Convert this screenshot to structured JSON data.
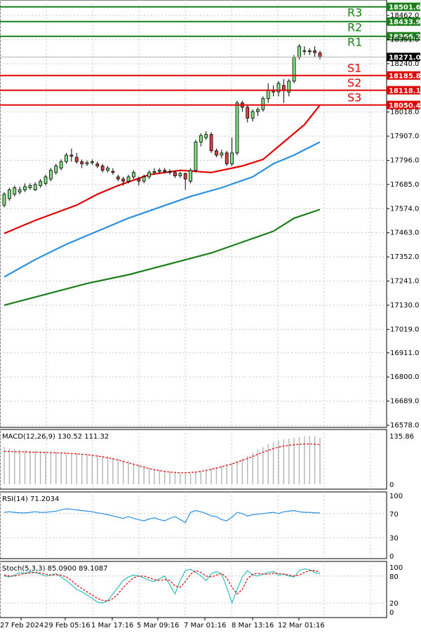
{
  "chart_data": {
    "type": "candlestick",
    "price_ticks": [
      "18462.0",
      "18351.0",
      "18240.0",
      "18018.0",
      "17907.0",
      "17796.0",
      "17685.0",
      "17574.0",
      "17463.0",
      "17352.0",
      "17241.0",
      "17130.0",
      "17019.0",
      "16911.0",
      "16800.0",
      "16689.0",
      "16578.0"
    ],
    "levels": [
      {
        "label": "R3",
        "value": 18501.6,
        "price_text": "18501.6",
        "color": "#1a7f1a"
      },
      {
        "label": "R2",
        "value": 18433.9,
        "price_text": "18433.9",
        "color": "#1a7f1a"
      },
      {
        "label": "R1",
        "value": 18366.2,
        "price_text": "18366.2",
        "color": "#1a7f1a"
      },
      {
        "label": "S1",
        "value": 18185.8,
        "price_text": "18185.8",
        "color": "#e00000"
      },
      {
        "label": "S2",
        "value": 18118.1,
        "price_text": "18118.1",
        "color": "#e00000"
      },
      {
        "label": "S3",
        "value": 18050.4,
        "price_text": "18050.4",
        "color": "#e00000"
      }
    ],
    "current_price": 18271.0,
    "current_price_text": "18271.0",
    "candles": [
      [
        17590,
        17640,
        17580,
        17650
      ],
      [
        17620,
        17660,
        17610,
        17670
      ],
      [
        17640,
        17670,
        17630,
        17680
      ],
      [
        17650,
        17660,
        17640,
        17675
      ],
      [
        17660,
        17675,
        17650,
        17690
      ],
      [
        17670,
        17680,
        17660,
        17690
      ],
      [
        17660,
        17685,
        17655,
        17695
      ],
      [
        17680,
        17700,
        17670,
        17710
      ],
      [
        17690,
        17720,
        17680,
        17730
      ],
      [
        17710,
        17750,
        17700,
        17760
      ],
      [
        17740,
        17770,
        17730,
        17780
      ],
      [
        17760,
        17790,
        17750,
        17800
      ],
      [
        17790,
        17820,
        17780,
        17830
      ],
      [
        17820,
        17815,
        17790,
        17850
      ],
      [
        17810,
        17790,
        17780,
        17830
      ],
      [
        17790,
        17780,
        17760,
        17800
      ],
      [
        17780,
        17785,
        17770,
        17795
      ],
      [
        17785,
        17790,
        17775,
        17800
      ],
      [
        17780,
        17770,
        17760,
        17790
      ],
      [
        17770,
        17750,
        17740,
        17780
      ],
      [
        17750,
        17760,
        17740,
        17770
      ],
      [
        17745,
        17740,
        17730,
        17760
      ],
      [
        17720,
        17710,
        17700,
        17730
      ],
      [
        17710,
        17700,
        17680,
        17720
      ],
      [
        17700,
        17720,
        17690,
        17730
      ],
      [
        17720,
        17740,
        17710,
        17750
      ],
      [
        17710,
        17700,
        17680,
        17720
      ],
      [
        17700,
        17720,
        17690,
        17730
      ],
      [
        17720,
        17740,
        17710,
        17750
      ],
      [
        17740,
        17745,
        17730,
        17760
      ],
      [
        17745,
        17750,
        17735,
        17760
      ],
      [
        17750,
        17745,
        17735,
        17760
      ],
      [
        17745,
        17740,
        17730,
        17755
      ],
      [
        17740,
        17725,
        17715,
        17750
      ],
      [
        17725,
        17735,
        17715,
        17745
      ],
      [
        17735,
        17710,
        17660,
        17740
      ],
      [
        17700,
        17750,
        17690,
        17760
      ],
      [
        17750,
        17880,
        17740,
        17890
      ],
      [
        17880,
        17910,
        17860,
        17920
      ],
      [
        17900,
        17915,
        17890,
        17930
      ],
      [
        17915,
        17840,
        17830,
        17925
      ],
      [
        17840,
        17820,
        17810,
        17850
      ],
      [
        17820,
        17830,
        17805,
        17845
      ],
      [
        17830,
        17780,
        17770,
        17840
      ],
      [
        17780,
        17830,
        17770,
        17900
      ],
      [
        17830,
        18060,
        17820,
        18070
      ],
      [
        18060,
        18040,
        18020,
        18070
      ],
      [
        18040,
        17990,
        17970,
        18050
      ],
      [
        17990,
        18020,
        17975,
        18030
      ],
      [
        18020,
        18030,
        18000,
        18040
      ],
      [
        18030,
        18080,
        18020,
        18090
      ],
      [
        18080,
        18120,
        18060,
        18150
      ],
      [
        18120,
        18110,
        18090,
        18140
      ],
      [
        18110,
        18150,
        18090,
        18160
      ],
      [
        18140,
        18120,
        18060,
        18170
      ],
      [
        18110,
        18160,
        18090,
        18170
      ],
      [
        18160,
        18270,
        18150,
        18280
      ],
      [
        18270,
        18320,
        18260,
        18330
      ],
      [
        18300,
        18300,
        18280,
        18320
      ],
      [
        18295,
        18300,
        18280,
        18310
      ],
      [
        18300,
        18291,
        18270,
        18320
      ],
      [
        18290,
        18271,
        18260,
        18300
      ]
    ],
    "moving_averages": [
      {
        "color": "#e00000",
        "points": [
          [
            0,
            17460
          ],
          [
            6,
            17520
          ],
          [
            14,
            17590
          ],
          [
            18,
            17640
          ],
          [
            22,
            17680
          ],
          [
            28,
            17730
          ],
          [
            34,
            17750
          ],
          [
            40,
            17740
          ],
          [
            46,
            17770
          ],
          [
            50,
            17800
          ],
          [
            54,
            17880
          ],
          [
            58,
            17960
          ],
          [
            61,
            18050
          ]
        ]
      },
      {
        "color": "#2b8fe0",
        "points": [
          [
            0,
            17260
          ],
          [
            6,
            17340
          ],
          [
            12,
            17410
          ],
          [
            18,
            17470
          ],
          [
            24,
            17530
          ],
          [
            30,
            17580
          ],
          [
            36,
            17630
          ],
          [
            42,
            17670
          ],
          [
            48,
            17720
          ],
          [
            52,
            17780
          ],
          [
            56,
            17820
          ],
          [
            61,
            17880
          ]
        ]
      },
      {
        "color": "#1a7f1a",
        "points": [
          [
            0,
            17130
          ],
          [
            8,
            17180
          ],
          [
            16,
            17230
          ],
          [
            24,
            17270
          ],
          [
            32,
            17320
          ],
          [
            40,
            17370
          ],
          [
            46,
            17420
          ],
          [
            52,
            17470
          ],
          [
            56,
            17530
          ],
          [
            61,
            17570
          ]
        ]
      }
    ],
    "macd": {
      "title": "MACD(12,26,9) 130.52 111.32",
      "top_tick": "135.86",
      "zero_tick": "0",
      "histogram": [
        105,
        100,
        98,
        96,
        95,
        94,
        93,
        92,
        91,
        90,
        90,
        89,
        88,
        87,
        86,
        85,
        84,
        83,
        82,
        80,
        78,
        75,
        72,
        68,
        65,
        60,
        55,
        50,
        45,
        42,
        40,
        38,
        35,
        32,
        30,
        30,
        31,
        33,
        36,
        40,
        44,
        48,
        52,
        56,
        60,
        65,
        72,
        80,
        88,
        96,
        104,
        112,
        118,
        122,
        126,
        128,
        130,
        132,
        134,
        135,
        135,
        130
      ],
      "signal": [
        92,
        92,
        91,
        91,
        91,
        90,
        90,
        90,
        89,
        89,
        88,
        88,
        87,
        86,
        85,
        84,
        83,
        81,
        79,
        77,
        74,
        71,
        68,
        64,
        60,
        56,
        52,
        48,
        44,
        41,
        38,
        36,
        34,
        33,
        32,
        32,
        33,
        34,
        36,
        39,
        42,
        45,
        49,
        53,
        57,
        62,
        67,
        72,
        78,
        84,
        90,
        95,
        100,
        104,
        107,
        109,
        111,
        112,
        113,
        113,
        112,
        111
      ]
    },
    "rsi": {
      "title": "RSI(14) 71.2034",
      "ticks": [
        "100",
        "70",
        "30",
        "0"
      ],
      "values": [
        72,
        73,
        72,
        71,
        71,
        72,
        73,
        72,
        72,
        73,
        74,
        76,
        78,
        77,
        76,
        75,
        74,
        73,
        71,
        70,
        68,
        66,
        64,
        62,
        65,
        62,
        60,
        58,
        61,
        63,
        60,
        58,
        62,
        65,
        60,
        55,
        72,
        75,
        73,
        70,
        66,
        65,
        60,
        58,
        64,
        72,
        70,
        66,
        68,
        69,
        70,
        71,
        72,
        70,
        73,
        74,
        75,
        73,
        72,
        72,
        71,
        71
      ]
    },
    "stoch": {
      "title": "Stoch(5,3,3) 85.0900 89.1087",
      "ticks": [
        "100",
        "80",
        "20",
        "0"
      ],
      "k": [
        80,
        78,
        82,
        88,
        86,
        90,
        88,
        84,
        80,
        82,
        85,
        78,
        70,
        60,
        50,
        45,
        38,
        30,
        22,
        20,
        25,
        40,
        55,
        70,
        78,
        82,
        80,
        76,
        70,
        68,
        74,
        80,
        60,
        40,
        70,
        92,
        95,
        88,
        80,
        70,
        85,
        90,
        84,
        55,
        20,
        50,
        78,
        92,
        82,
        80,
        84,
        88,
        90,
        82,
        84,
        80,
        78,
        92,
        96,
        94,
        88,
        85
      ],
      "d": [
        82,
        80,
        80,
        83,
        86,
        87,
        88,
        87,
        84,
        82,
        83,
        82,
        78,
        70,
        60,
        52,
        45,
        38,
        30,
        26,
        24,
        30,
        40,
        55,
        66,
        76,
        80,
        80,
        76,
        72,
        70,
        72,
        70,
        58,
        55,
        68,
        84,
        92,
        88,
        80,
        78,
        82,
        86,
        76,
        55,
        40,
        50,
        74,
        84,
        86,
        84,
        84,
        86,
        86,
        84,
        82,
        80,
        82,
        88,
        92,
        92,
        89
      ]
    },
    "x_labels": [
      "27 Feb 2024",
      "29 Feb 05:16",
      "1 Mar 17:16",
      "5 Mar 09:16",
      "7 Mar 01:16",
      "8 Mar 13:16",
      "12 Mar 01:16"
    ]
  }
}
